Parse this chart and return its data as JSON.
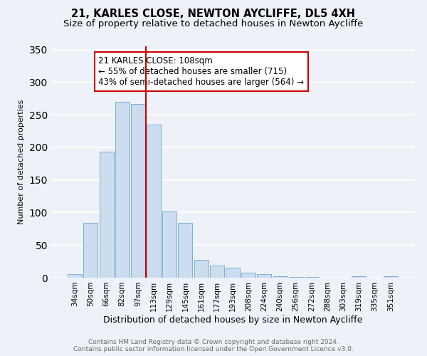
{
  "title": "21, KARLES CLOSE, NEWTON AYCLIFFE, DL5 4XH",
  "subtitle": "Size of property relative to detached houses in Newton Aycliffe",
  "xlabel": "Distribution of detached houses by size in Newton Aycliffe",
  "ylabel": "Number of detached properties",
  "categories": [
    "34sqm",
    "50sqm",
    "66sqm",
    "82sqm",
    "97sqm",
    "113sqm",
    "129sqm",
    "145sqm",
    "161sqm",
    "177sqm",
    "193sqm",
    "208sqm",
    "224sqm",
    "240sqm",
    "256sqm",
    "272sqm",
    "288sqm",
    "303sqm",
    "319sqm",
    "335sqm",
    "351sqm"
  ],
  "values": [
    5,
    84,
    193,
    270,
    266,
    235,
    102,
    84,
    27,
    19,
    15,
    8,
    5,
    2,
    1,
    1,
    0,
    0,
    2,
    0,
    2
  ],
  "bar_color": "#ccddf0",
  "bar_edge_color": "#7aafd4",
  "vline_color": "#cc0000",
  "vline_x": 4.5,
  "annotation_text": "21 KARLES CLOSE: 108sqm\n← 55% of detached houses are smaller (715)\n43% of semi-detached houses are larger (564) →",
  "annotation_box_color": "white",
  "annotation_box_edge_color": "#cc0000",
  "ylim": [
    0,
    355
  ],
  "yticks": [
    0,
    50,
    100,
    150,
    200,
    250,
    300,
    350
  ],
  "footer1": "Contains HM Land Registry data © Crown copyright and database right 2024.",
  "footer2": "Contains public sector information licensed under the Open Government Licence v3.0.",
  "background_color": "#eef2f8",
  "grid_color": "white",
  "title_fontsize": 10.5,
  "subtitle_fontsize": 9.5,
  "xlabel_fontsize": 9,
  "ylabel_fontsize": 8,
  "tick_fontsize": 7.5,
  "annotation_fontsize": 8.5,
  "footer_fontsize": 6.5
}
